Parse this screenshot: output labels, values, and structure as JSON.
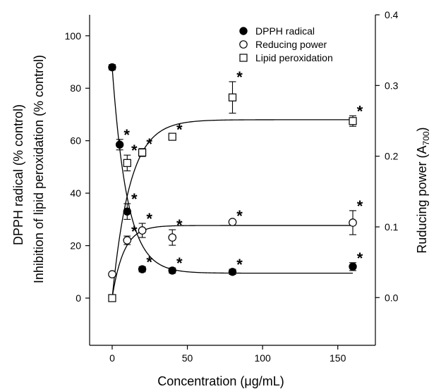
{
  "chart_data": {
    "type": "scatter",
    "x_axis": {
      "label": "Concentration (μg/mL)",
      "range": [
        -15,
        175
      ],
      "ticks": [
        "0",
        "50",
        "100",
        "150"
      ]
    },
    "y_left": {
      "label_line1": "DPPH radical (% control)",
      "label_line2": "Inhibition of lipid peroxidation (% control)",
      "range": [
        -18,
        108
      ],
      "ticks": [
        "0",
        "20",
        "40",
        "60",
        "80",
        "100"
      ]
    },
    "y_right": {
      "label": "Ruducing power (A",
      "label_sub": "700",
      "label_end": ")",
      "range": [
        -0.0675,
        0.4
      ],
      "ticks": [
        "0.0",
        "0.1",
        "0.2",
        "0.3",
        "0.4"
      ]
    },
    "significance_marker": "*",
    "series": [
      {
        "name": "DPPH radical",
        "marker": "filled-circle",
        "axis": "left",
        "x": [
          0,
          5,
          10,
          20,
          40,
          80,
          160
        ],
        "y": [
          88,
          58.5,
          33,
          11,
          10.5,
          10,
          12
        ],
        "err": [
          1,
          2,
          3,
          1,
          1,
          1,
          1.5
        ],
        "significant": [
          false,
          true,
          true,
          true,
          true,
          true,
          true
        ]
      },
      {
        "name": "Reducing power",
        "marker": "open-circle",
        "axis": "right",
        "x": [
          0,
          10,
          20,
          40,
          80,
          160
        ],
        "y": [
          0.033,
          0.081,
          0.095,
          0.085,
          0.107,
          0.106
        ],
        "err": [
          0.002,
          0.006,
          0.01,
          0.011,
          0.002,
          0.017
        ],
        "significant": [
          false,
          true,
          true,
          true,
          true,
          true
        ]
      },
      {
        "name": "Lipid peroxidation",
        "marker": "open-square",
        "axis": "left",
        "x": [
          0,
          10,
          20,
          40,
          80,
          160
        ],
        "y": [
          0,
          51.5,
          55.5,
          61.5,
          76.5,
          67.5
        ],
        "err": [
          0.5,
          3,
          1.5,
          1,
          6,
          2
        ],
        "significant": [
          false,
          true,
          true,
          true,
          true,
          true
        ]
      }
    ],
    "fit_curves": [
      {
        "series": "DPPH radical",
        "axis": "left",
        "form": "decay",
        "plateau": 9.5,
        "span": 78.5,
        "rate": 0.1
      },
      {
        "series": "Lipid peroxidation",
        "axis": "left",
        "form": "rise",
        "top": 68,
        "rate": 0.085
      },
      {
        "series": "Reducing power",
        "axis": "right",
        "form": "rise",
        "base": 0.0,
        "top": 0.102,
        "rate": 0.13
      }
    ],
    "legend": {
      "position": "top-right",
      "entries": [
        "DPPH radical",
        "Reducing power",
        "Lipid peroxidation"
      ]
    }
  }
}
